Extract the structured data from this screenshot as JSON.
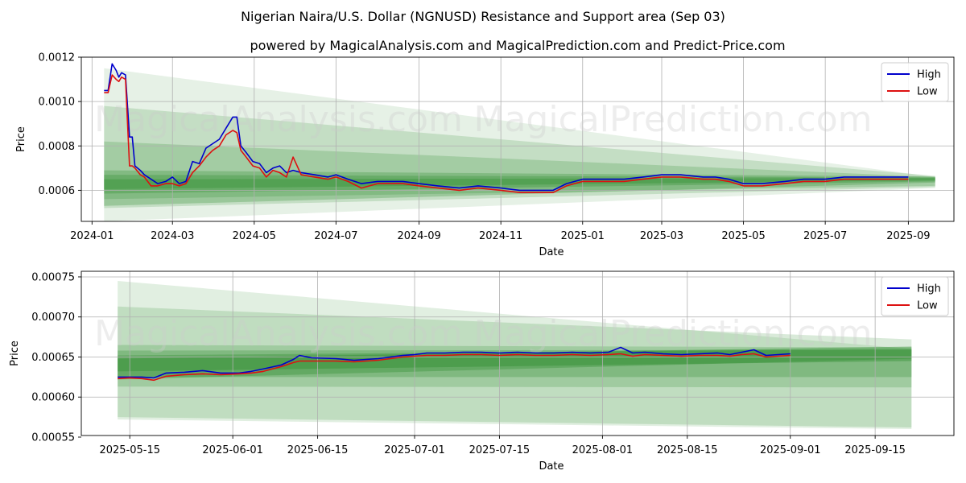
{
  "title": "Nigerian Naira/U.S. Dollar (NGNUSD) Resistance and Support area (Sep 03)",
  "subtitle": "powered by MagicalAnalysis.com and MagicalPrediction.com and Predict-Price.com",
  "watermarks": [
    "MagicalAnalysis.com",
    "MagicalPrediction.com"
  ],
  "colors": {
    "high": "#0000cc",
    "low": "#dd1111",
    "band": "#2e8b2e",
    "grid": "#b0b0b0"
  },
  "chart_data": [
    {
      "type": "line",
      "name": "overview",
      "xlabel": "Date",
      "ylabel": "Price",
      "xlim": [
        "2023-12-24",
        "2025-10-05"
      ],
      "ylim": [
        0.00046,
        0.0012
      ],
      "yticks": [
        {
          "value": 0.0006,
          "label": "0.0006"
        },
        {
          "value": 0.0008,
          "label": "0.0008"
        },
        {
          "value": 0.001,
          "label": "0.0010"
        },
        {
          "value": 0.0012,
          "label": "0.0012"
        }
      ],
      "xticks": [
        {
          "date": "2024-01-01",
          "label": "2024-01"
        },
        {
          "date": "2024-03-01",
          "label": "2024-03"
        },
        {
          "date": "2024-05-01",
          "label": "2024-05"
        },
        {
          "date": "2024-07-01",
          "label": "2024-07"
        },
        {
          "date": "2024-09-01",
          "label": "2024-09"
        },
        {
          "date": "2024-11-01",
          "label": "2024-11"
        },
        {
          "date": "2025-01-01",
          "label": "2025-01"
        },
        {
          "date": "2025-03-01",
          "label": "2025-03"
        },
        {
          "date": "2025-05-01",
          "label": "2025-05"
        },
        {
          "date": "2025-07-01",
          "label": "2025-07"
        },
        {
          "date": "2025-09-01",
          "label": "2025-09"
        }
      ],
      "legend": {
        "position": "top-right",
        "entries": [
          "High",
          "Low"
        ]
      },
      "bands": {
        "start": "2024-01-10",
        "end": "2025-09-21",
        "items": [
          {
            "top": [
              0.00115,
              0.00066
            ],
            "bottom": [
              0.00046,
              0.00061
            ],
            "opacity": 0.12
          },
          {
            "top": [
              0.00098,
              0.000665
            ],
            "bottom": [
              0.00052,
              0.000615
            ],
            "opacity": 0.18
          },
          {
            "top": [
              0.00082,
              0.00066
            ],
            "bottom": [
              0.00056,
              0.00062
            ],
            "opacity": 0.22
          },
          {
            "top": [
              0.00069,
              0.000662
            ],
            "bottom": [
              0.00053,
              0.000635
            ],
            "opacity": 0.28
          },
          {
            "top": [
              0.00067,
              0.000658
            ],
            "bottom": [
              0.000585,
              0.00064
            ],
            "opacity": 0.3
          },
          {
            "top": [
              0.00065,
              0.000655
            ],
            "bottom": [
              0.000605,
              0.000645
            ],
            "opacity": 0.35
          }
        ]
      },
      "series": [
        {
          "name": "High",
          "dates": [
            "2024-01-10",
            "2024-01-13",
            "2024-01-16",
            "2024-01-19",
            "2024-01-21",
            "2024-01-23",
            "2024-01-26",
            "2024-01-29",
            "2024-01-31",
            "2024-02-02",
            "2024-02-06",
            "2024-02-09",
            "2024-02-14",
            "2024-02-19",
            "2024-02-25",
            "2024-03-01",
            "2024-03-06",
            "2024-03-11",
            "2024-03-16",
            "2024-03-21",
            "2024-03-26",
            "2024-03-31",
            "2024-04-05",
            "2024-04-10",
            "2024-04-15",
            "2024-04-18",
            "2024-04-21",
            "2024-04-25",
            "2024-04-30",
            "2024-05-05",
            "2024-05-10",
            "2024-05-15",
            "2024-05-20",
            "2024-05-25",
            "2024-05-30",
            "2024-06-05",
            "2024-06-15",
            "2024-06-25",
            "2024-07-01",
            "2024-07-10",
            "2024-07-20",
            "2024-08-01",
            "2024-08-10",
            "2024-08-20",
            "2024-09-01",
            "2024-09-15",
            "2024-10-01",
            "2024-10-15",
            "2024-11-01",
            "2024-11-15",
            "2024-12-01",
            "2024-12-10",
            "2024-12-20",
            "2025-01-01",
            "2025-01-15",
            "2025-02-01",
            "2025-02-15",
            "2025-03-01",
            "2025-03-15",
            "2025-04-01",
            "2025-04-10",
            "2025-04-20",
            "2025-05-01",
            "2025-05-15",
            "2025-06-01",
            "2025-06-15",
            "2025-07-01",
            "2025-07-15",
            "2025-08-01",
            "2025-08-15",
            "2025-09-01"
          ],
          "values": [
            0.00105,
            0.00105,
            0.00117,
            0.00114,
            0.00111,
            0.00113,
            0.00112,
            0.00084,
            0.00084,
            0.00071,
            0.00069,
            0.00067,
            0.00065,
            0.00063,
            0.00064,
            0.00066,
            0.00063,
            0.00064,
            0.00073,
            0.00072,
            0.00079,
            0.00081,
            0.00083,
            0.00088,
            0.00093,
            0.00093,
            0.0008,
            0.00077,
            0.00073,
            0.00072,
            0.00068,
            0.0007,
            0.00071,
            0.00068,
            0.00069,
            0.00068,
            0.00067,
            0.00066,
            0.00067,
            0.00065,
            0.00063,
            0.00064,
            0.00064,
            0.00064,
            0.00063,
            0.00062,
            0.00061,
            0.00062,
            0.00061,
            0.0006,
            0.0006,
            0.0006,
            0.00063,
            0.00065,
            0.00065,
            0.00065,
            0.00066,
            0.00067,
            0.00067,
            0.00066,
            0.00066,
            0.00065,
            0.00063,
            0.00063,
            0.00064,
            0.00065,
            0.00065,
            0.00066,
            0.00066,
            0.00066,
            0.00066
          ]
        },
        {
          "name": "Low",
          "dates": [
            "2024-01-10",
            "2024-01-13",
            "2024-01-16",
            "2024-01-19",
            "2024-01-21",
            "2024-01-23",
            "2024-01-26",
            "2024-01-29",
            "2024-01-31",
            "2024-02-02",
            "2024-02-06",
            "2024-02-09",
            "2024-02-14",
            "2024-02-19",
            "2024-02-25",
            "2024-03-01",
            "2024-03-06",
            "2024-03-11",
            "2024-03-16",
            "2024-03-21",
            "2024-03-26",
            "2024-03-31",
            "2024-04-05",
            "2024-04-10",
            "2024-04-15",
            "2024-04-18",
            "2024-04-21",
            "2024-04-25",
            "2024-04-30",
            "2024-05-05",
            "2024-05-10",
            "2024-05-15",
            "2024-05-20",
            "2024-05-25",
            "2024-05-30",
            "2024-06-05",
            "2024-06-15",
            "2024-06-25",
            "2024-07-01",
            "2024-07-10",
            "2024-07-20",
            "2024-08-01",
            "2024-08-10",
            "2024-08-20",
            "2024-09-01",
            "2024-09-15",
            "2024-10-01",
            "2024-10-15",
            "2024-11-01",
            "2024-11-15",
            "2024-12-01",
            "2024-12-10",
            "2024-12-20",
            "2025-01-01",
            "2025-01-15",
            "2025-02-01",
            "2025-02-15",
            "2025-03-01",
            "2025-03-15",
            "2025-04-01",
            "2025-04-10",
            "2025-04-20",
            "2025-05-01",
            "2025-05-15",
            "2025-06-01",
            "2025-06-15",
            "2025-07-01",
            "2025-07-15",
            "2025-08-01",
            "2025-08-15",
            "2025-09-01"
          ],
          "values": [
            0.00104,
            0.00104,
            0.00112,
            0.0011,
            0.00109,
            0.00111,
            0.0011,
            0.00071,
            0.00071,
            0.0007,
            0.00067,
            0.00066,
            0.00062,
            0.00062,
            0.00063,
            0.00063,
            0.00062,
            0.00063,
            0.00068,
            0.00071,
            0.00075,
            0.00078,
            0.0008,
            0.00085,
            0.00087,
            0.00086,
            0.00078,
            0.00075,
            0.00071,
            0.0007,
            0.00066,
            0.00069,
            0.00068,
            0.00066,
            0.00075,
            0.00067,
            0.00066,
            0.00065,
            0.00066,
            0.00064,
            0.00061,
            0.00063,
            0.00063,
            0.00063,
            0.00062,
            0.00061,
            0.0006,
            0.00061,
            0.0006,
            0.00059,
            0.00059,
            0.00059,
            0.00062,
            0.00064,
            0.00064,
            0.00064,
            0.00065,
            0.00066,
            0.00066,
            0.00065,
            0.00065,
            0.00064,
            0.00062,
            0.00062,
            0.00063,
            0.00064,
            0.00064,
            0.00065,
            0.00065,
            0.00065,
            0.00065
          ]
        }
      ]
    },
    {
      "type": "line",
      "name": "zoom",
      "xlabel": "Date",
      "ylabel": "Price",
      "xlim": [
        "2025-05-07",
        "2025-09-28"
      ],
      "ylim": [
        0.000552,
        0.000757
      ],
      "yticks": [
        {
          "value": 0.00055,
          "label": "0.00055"
        },
        {
          "value": 0.0006,
          "label": "0.00060"
        },
        {
          "value": 0.00065,
          "label": "0.00065"
        },
        {
          "value": 0.0007,
          "label": "0.00070"
        },
        {
          "value": 0.00075,
          "label": "0.00075"
        }
      ],
      "xticks": [
        {
          "date": "2025-05-15",
          "label": "2025-05-15"
        },
        {
          "date": "2025-06-01",
          "label": "2025-06-01"
        },
        {
          "date": "2025-06-15",
          "label": "2025-06-15"
        },
        {
          "date": "2025-07-01",
          "label": "2025-07-01"
        },
        {
          "date": "2025-07-15",
          "label": "2025-07-15"
        },
        {
          "date": "2025-08-01",
          "label": "2025-08-01"
        },
        {
          "date": "2025-08-15",
          "label": "2025-08-15"
        },
        {
          "date": "2025-09-01",
          "label": "2025-09-01"
        },
        {
          "date": "2025-09-15",
          "label": "2025-09-15"
        }
      ],
      "legend": {
        "position": "top-right",
        "entries": [
          "High",
          "Low"
        ]
      },
      "bands": {
        "start": "2025-05-13",
        "end": "2025-09-21",
        "items": [
          {
            "top": [
              0.000745,
              0.00066
            ],
            "bottom": [
              0.000572,
              0.00056
            ],
            "opacity": 0.14
          },
          {
            "top": [
              0.000713,
              0.000672
            ],
            "bottom": [
              0.000575,
              0.000562
            ],
            "opacity": 0.18
          },
          {
            "top": [
              0.000665,
              0.000662
            ],
            "bottom": [
              0.000613,
              0.000612
            ],
            "opacity": 0.22
          },
          {
            "top": [
              0.000658,
              0.000659
            ],
            "bottom": [
              0.000625,
              0.000625
            ],
            "opacity": 0.28
          },
          {
            "top": [
              0.000652,
              0.00066
            ],
            "bottom": [
              0.000622,
              0.000648
            ],
            "opacity": 0.35
          },
          {
            "top": [
              0.000648,
              0.000663
            ],
            "bottom": [
              0.000632,
              0.000645
            ],
            "opacity": 0.4
          }
        ]
      },
      "series": [
        {
          "name": "High",
          "dates": [
            "2025-05-13",
            "2025-05-15",
            "2025-05-17",
            "2025-05-19",
            "2025-05-21",
            "2025-05-24",
            "2025-05-27",
            "2025-05-30",
            "2025-06-02",
            "2025-06-04",
            "2025-06-06",
            "2025-06-09",
            "2025-06-11",
            "2025-06-12",
            "2025-06-14",
            "2025-06-18",
            "2025-06-21",
            "2025-06-23",
            "2025-06-25",
            "2025-06-27",
            "2025-06-29",
            "2025-07-01",
            "2025-07-03",
            "2025-07-06",
            "2025-07-09",
            "2025-07-12",
            "2025-07-15",
            "2025-07-18",
            "2025-07-21",
            "2025-07-24",
            "2025-07-27",
            "2025-07-30",
            "2025-08-02",
            "2025-08-04",
            "2025-08-06",
            "2025-08-08",
            "2025-08-11",
            "2025-08-14",
            "2025-08-17",
            "2025-08-20",
            "2025-08-22",
            "2025-08-24",
            "2025-08-26",
            "2025-08-28",
            "2025-08-30",
            "2025-09-01"
          ],
          "values": [
            0.000625,
            0.000625,
            0.000625,
            0.000624,
            0.00063,
            0.000631,
            0.000633,
            0.00063,
            0.00063,
            0.000632,
            0.000635,
            0.00064,
            0.000647,
            0.000652,
            0.000649,
            0.000648,
            0.000646,
            0.000647,
            0.000648,
            0.00065,
            0.000652,
            0.000653,
            0.000655,
            0.000655,
            0.000656,
            0.000656,
            0.000655,
            0.000656,
            0.000655,
            0.000655,
            0.000656,
            0.000655,
            0.000656,
            0.000662,
            0.000655,
            0.000656,
            0.000654,
            0.000653,
            0.000654,
            0.000655,
            0.000653,
            0.000656,
            0.000659,
            0.000652,
            0.000653,
            0.000654
          ]
        },
        {
          "name": "Low",
          "dates": [
            "2025-05-13",
            "2025-05-15",
            "2025-05-17",
            "2025-05-19",
            "2025-05-21",
            "2025-05-24",
            "2025-05-27",
            "2025-05-30",
            "2025-06-02",
            "2025-06-04",
            "2025-06-06",
            "2025-06-09",
            "2025-06-11",
            "2025-06-12",
            "2025-06-14",
            "2025-06-18",
            "2025-06-21",
            "2025-06-23",
            "2025-06-25",
            "2025-06-27",
            "2025-06-29",
            "2025-07-01",
            "2025-07-03",
            "2025-07-06",
            "2025-07-09",
            "2025-07-12",
            "2025-07-15",
            "2025-07-18",
            "2025-07-21",
            "2025-07-24",
            "2025-07-27",
            "2025-07-30",
            "2025-08-02",
            "2025-08-04",
            "2025-08-06",
            "2025-08-08",
            "2025-08-11",
            "2025-08-14",
            "2025-08-17",
            "2025-08-20",
            "2025-08-22",
            "2025-08-24",
            "2025-08-26",
            "2025-08-28",
            "2025-08-30",
            "2025-09-01"
          ],
          "values": [
            0.000623,
            0.000624,
            0.000623,
            0.000621,
            0.000626,
            0.000628,
            0.000629,
            0.000628,
            0.000629,
            0.00063,
            0.000632,
            0.000638,
            0.000643,
            0.000645,
            0.000645,
            0.000645,
            0.000644,
            0.000645,
            0.000646,
            0.000648,
            0.00065,
            0.000651,
            0.000652,
            0.000652,
            0.000653,
            0.000653,
            0.000652,
            0.000653,
            0.000652,
            0.000652,
            0.000653,
            0.000652,
            0.000653,
            0.000654,
            0.000651,
            0.000653,
            0.000652,
            0.000651,
            0.000652,
            0.000652,
            0.000651,
            0.000653,
            0.000654,
            0.00065,
            0.000651,
            0.000652
          ]
        }
      ]
    }
  ]
}
